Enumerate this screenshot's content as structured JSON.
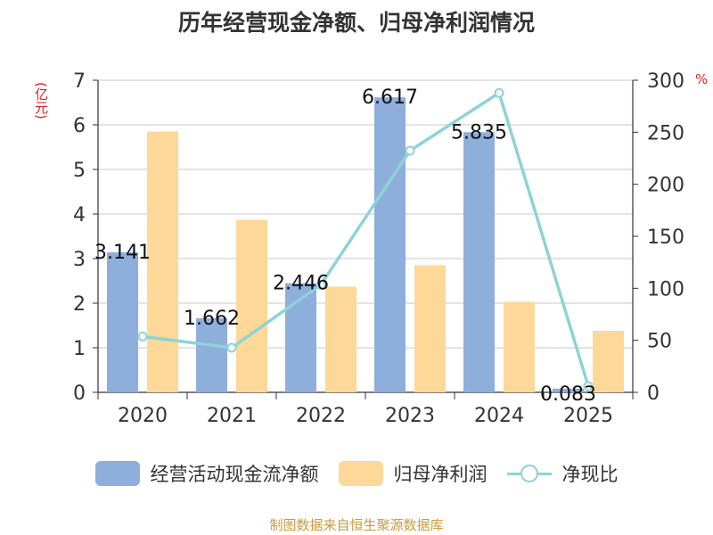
{
  "title": "历年经营现金净额、归母净利润情况",
  "source": "制图数据来自恒生聚源数据库",
  "chart_data": {
    "type": "bar",
    "categories": [
      "2020",
      "2021",
      "2022",
      "2023",
      "2024",
      "2025"
    ],
    "series": [
      {
        "name": "经营活动现金流净额",
        "type": "bar",
        "axis": "left",
        "color": "#8eaedc",
        "values": [
          3.141,
          1.662,
          2.446,
          6.617,
          5.835,
          0.083
        ],
        "labels": [
          "3.141",
          "1.662",
          "2.446",
          "6.617",
          "5.835",
          "0.083"
        ]
      },
      {
        "name": "归母净利润",
        "type": "bar",
        "axis": "left",
        "color": "#fdd898",
        "values": [
          5.85,
          3.87,
          2.37,
          2.85,
          2.03,
          1.38
        ]
      },
      {
        "name": "净现比",
        "type": "line",
        "axis": "right",
        "color": "#8dd3d8",
        "values": [
          53.7,
          42.9,
          103.4,
          232.3,
          287.8,
          6.0
        ]
      }
    ],
    "y_left": {
      "unit": "(亿元)",
      "min": 0,
      "max": 7,
      "ticks": [
        "0",
        "1",
        "2",
        "3",
        "4",
        "5",
        "6",
        "7"
      ]
    },
    "y_right": {
      "unit": "%",
      "min": 0,
      "max": 300,
      "ticks": [
        "0",
        "50",
        "100",
        "150",
        "200",
        "250",
        "300"
      ]
    },
    "grid": true,
    "legend": "bottom"
  }
}
